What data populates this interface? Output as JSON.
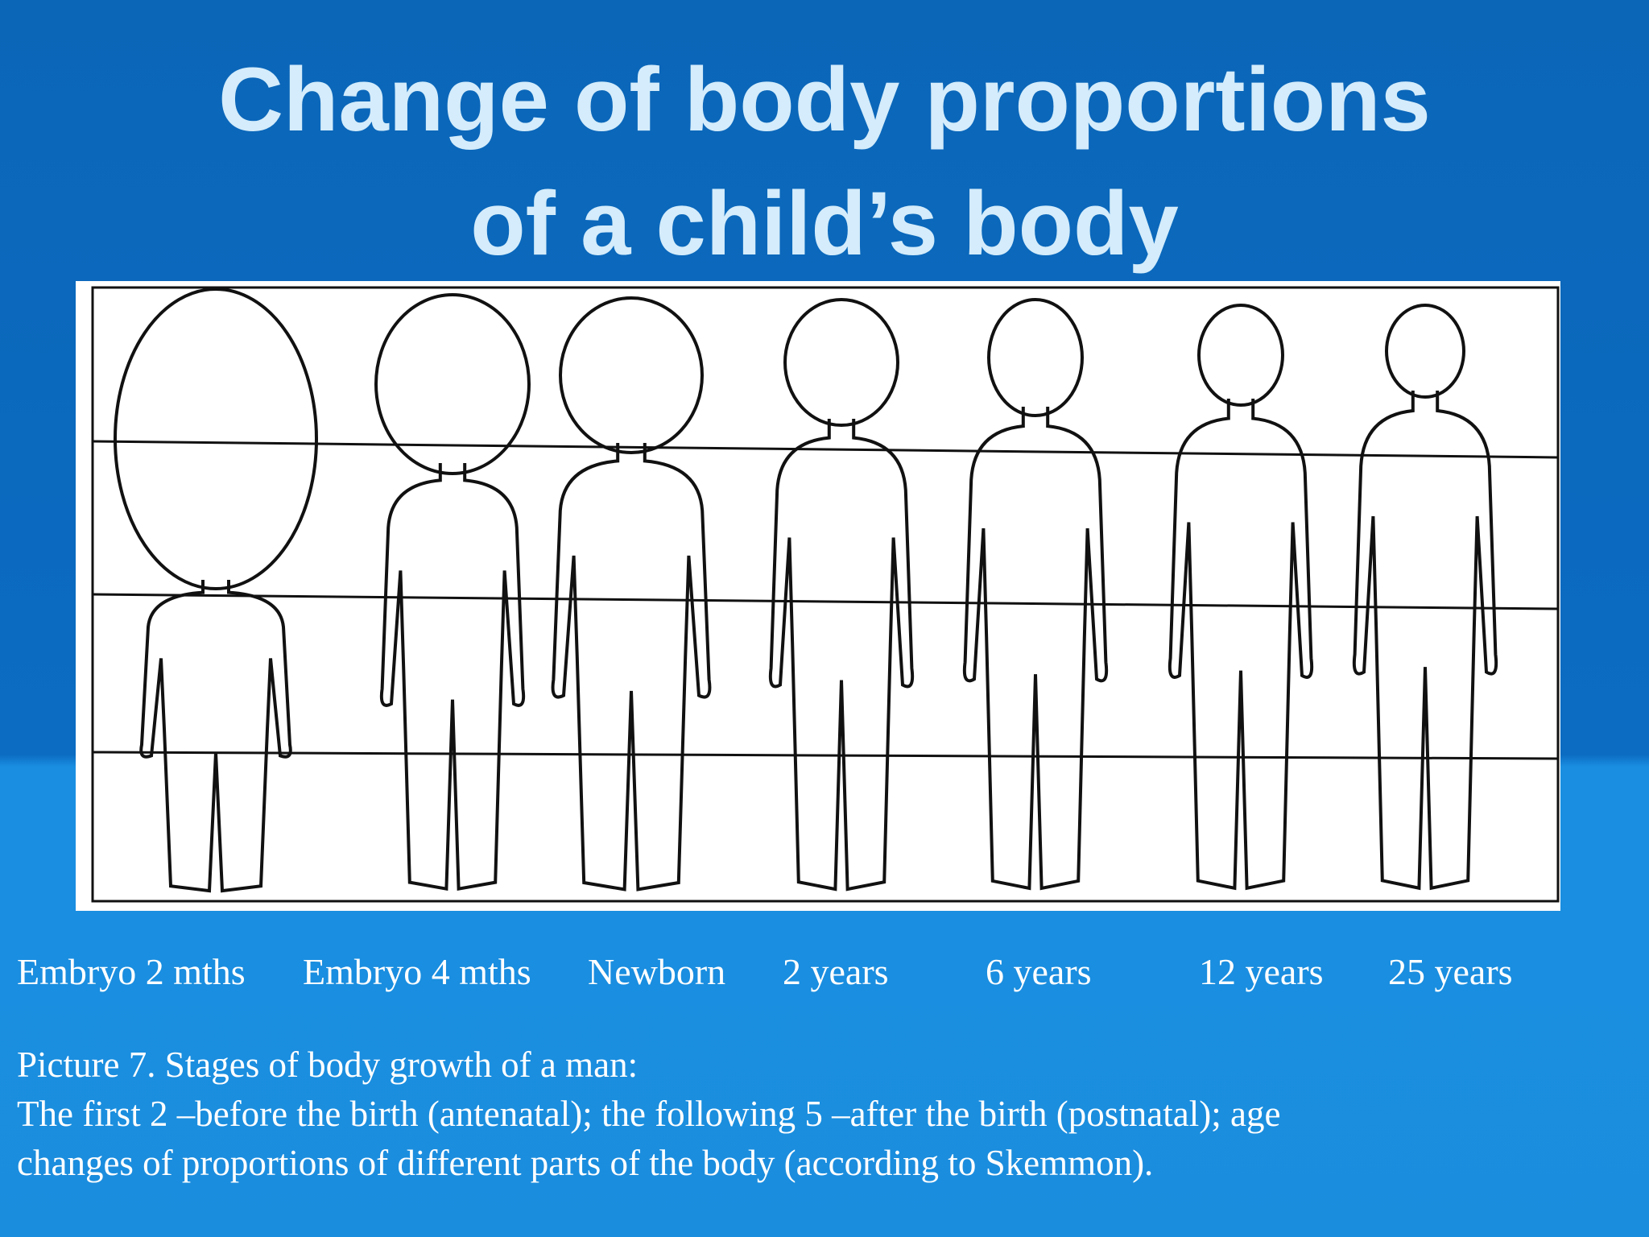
{
  "header": {
    "title_lines": [
      "Change of body proportions",
      "of a child’s body"
    ]
  },
  "figure": {
    "labels": [
      "Embryo 2 mths",
      "Embryo 4 mths",
      "Newborn",
      "2 years",
      "6 years",
      "12 years",
      "25 years"
    ]
  },
  "caption": {
    "lines": [
      "Picture 7. Stages of body growth of a man:",
      "The first 2 –before the birth (antenatal); the following 5 –after the birth (postnatal); age",
      "changes of proportions of different parts of the body (according to Skemmon)."
    ]
  }
}
